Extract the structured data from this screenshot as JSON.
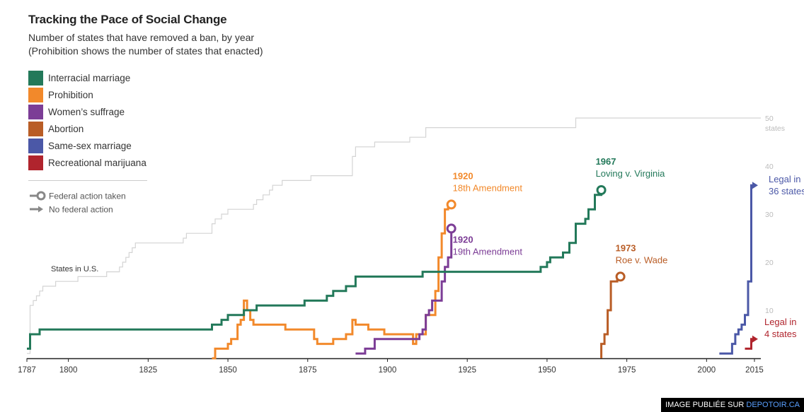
{
  "header": {
    "title": "Tracking the Pace of Social Change",
    "subtitle1": "Number of states that have removed a ban, by year",
    "subtitle2": "(Prohibition shows the number of states that enacted)"
  },
  "legend": {
    "items": [
      {
        "label": "Interracial marriage",
        "color": "#23795a"
      },
      {
        "label": "Prohibition",
        "color": "#f2892b"
      },
      {
        "label": "Women’s suffrage",
        "color": "#7c3d96"
      },
      {
        "label": "Abortion",
        "color": "#b95d26"
      },
      {
        "label": "Same-sex marriage",
        "color": "#4b58a7"
      },
      {
        "label": "Recreational marijuana",
        "color": "#b0242d"
      }
    ],
    "federal_action": "Federal action taken",
    "no_federal_action": "No federal action"
  },
  "credit": {
    "prefix": "IMAGE PUBLIÉE SUR ",
    "site": "DEPOTOIR.CA"
  },
  "chart_data": {
    "type": "line",
    "step": true,
    "xlim": [
      1787,
      2017
    ],
    "ylim": [
      0,
      52
    ],
    "x_ticks": [
      1787,
      1800,
      1825,
      1850,
      1875,
      1900,
      1925,
      1950,
      1975,
      2000,
      2015
    ],
    "y_ticks": [
      10,
      20,
      30,
      40,
      50
    ],
    "y_tick_suffix_last": "states",
    "states_label": "States in U.S.",
    "states_in_us": [
      [
        1787,
        1
      ],
      [
        1788,
        11
      ],
      [
        1789,
        12
      ],
      [
        1790,
        13
      ],
      [
        1791,
        14
      ],
      [
        1792,
        15
      ],
      [
        1796,
        16
      ],
      [
        1803,
        17
      ],
      [
        1812,
        18
      ],
      [
        1816,
        19
      ],
      [
        1817,
        20
      ],
      [
        1818,
        21
      ],
      [
        1819,
        22
      ],
      [
        1820,
        23
      ],
      [
        1821,
        24
      ],
      [
        1836,
        25
      ],
      [
        1837,
        26
      ],
      [
        1845,
        28
      ],
      [
        1846,
        29
      ],
      [
        1848,
        30
      ],
      [
        1850,
        31
      ],
      [
        1858,
        32
      ],
      [
        1859,
        33
      ],
      [
        1861,
        34
      ],
      [
        1863,
        35
      ],
      [
        1864,
        36
      ],
      [
        1867,
        37
      ],
      [
        1876,
        38
      ],
      [
        1889,
        42
      ],
      [
        1890,
        44
      ],
      [
        1896,
        45
      ],
      [
        1907,
        46
      ],
      [
        1912,
        48
      ],
      [
        1959,
        50
      ],
      [
        2017,
        50
      ]
    ],
    "series": [
      {
        "name": "Interracial marriage",
        "color": "#23795a",
        "federal": true,
        "endpoint_label": [
          "1967",
          "Loving v. Virginia"
        ],
        "points": [
          [
            1787,
            2
          ],
          [
            1788,
            5
          ],
          [
            1791,
            6
          ],
          [
            1843,
            6
          ],
          [
            1845,
            7
          ],
          [
            1848,
            8
          ],
          [
            1850,
            9
          ],
          [
            1855,
            10
          ],
          [
            1859,
            11
          ],
          [
            1874,
            12
          ],
          [
            1881,
            13
          ],
          [
            1883,
            14
          ],
          [
            1887,
            15
          ],
          [
            1890,
            17
          ],
          [
            1911,
            18
          ],
          [
            1947,
            18
          ],
          [
            1948,
            19
          ],
          [
            1950,
            20
          ],
          [
            1951,
            21
          ],
          [
            1955,
            22
          ],
          [
            1957,
            24
          ],
          [
            1959,
            28
          ],
          [
            1962,
            29
          ],
          [
            1963,
            31
          ],
          [
            1965,
            34
          ],
          [
            1967,
            35
          ]
        ]
      },
      {
        "name": "Prohibition",
        "color": "#f2892b",
        "federal": true,
        "endpoint_label": [
          "1920",
          "18th Amendment"
        ],
        "points": [
          [
            1845,
            0
          ],
          [
            1846,
            2
          ],
          [
            1850,
            3
          ],
          [
            1851,
            4
          ],
          [
            1853,
            7
          ],
          [
            1854,
            8
          ],
          [
            1855,
            12
          ],
          [
            1856,
            10
          ],
          [
            1857,
            8
          ],
          [
            1858,
            7
          ],
          [
            1863,
            7
          ],
          [
            1868,
            6
          ],
          [
            1877,
            4
          ],
          [
            1878,
            3
          ],
          [
            1883,
            4
          ],
          [
            1887,
            5
          ],
          [
            1889,
            8
          ],
          [
            1890,
            7
          ],
          [
            1894,
            6
          ],
          [
            1899,
            5
          ],
          [
            1908,
            3
          ],
          [
            1909,
            5
          ],
          [
            1912,
            9
          ],
          [
            1915,
            14
          ],
          [
            1916,
            21
          ],
          [
            1917,
            26
          ],
          [
            1918,
            31
          ],
          [
            1919,
            32
          ],
          [
            1920,
            32
          ]
        ]
      },
      {
        "name": "Women’s suffrage",
        "color": "#7c3d96",
        "federal": true,
        "endpoint_label": [
          "1920",
          "19th Amendment"
        ],
        "points": [
          [
            1890,
            1
          ],
          [
            1893,
            2
          ],
          [
            1896,
            4
          ],
          [
            1910,
            5
          ],
          [
            1911,
            6
          ],
          [
            1912,
            9
          ],
          [
            1913,
            10
          ],
          [
            1914,
            12
          ],
          [
            1917,
            16
          ],
          [
            1918,
            19
          ],
          [
            1919,
            21
          ],
          [
            1920,
            27
          ]
        ]
      },
      {
        "name": "Abortion",
        "color": "#b95d26",
        "federal": true,
        "endpoint_label": [
          "1973",
          "Roe v. Wade"
        ],
        "points": [
          [
            1967,
            0
          ],
          [
            1967,
            3
          ],
          [
            1968,
            5
          ],
          [
            1969,
            10
          ],
          [
            1970,
            16
          ],
          [
            1972,
            17
          ],
          [
            1973,
            17
          ]
        ]
      },
      {
        "name": "Same-sex marriage",
        "color": "#4b58a7",
        "federal": false,
        "endpoint_label": [
          "Legal in",
          "36 states"
        ],
        "points": [
          [
            2004,
            1
          ],
          [
            2008,
            3
          ],
          [
            2009,
            5
          ],
          [
            2010,
            6
          ],
          [
            2011,
            7
          ],
          [
            2012,
            9
          ],
          [
            2013,
            16
          ],
          [
            2014,
            36
          ],
          [
            2015,
            36
          ]
        ]
      },
      {
        "name": "Recreational marijuana",
        "color": "#b0242d",
        "federal": false,
        "endpoint_label": [
          "Legal in",
          "4 states"
        ],
        "points": [
          [
            2012,
            2
          ],
          [
            2014,
            4
          ],
          [
            2015,
            4
          ]
        ]
      }
    ]
  }
}
